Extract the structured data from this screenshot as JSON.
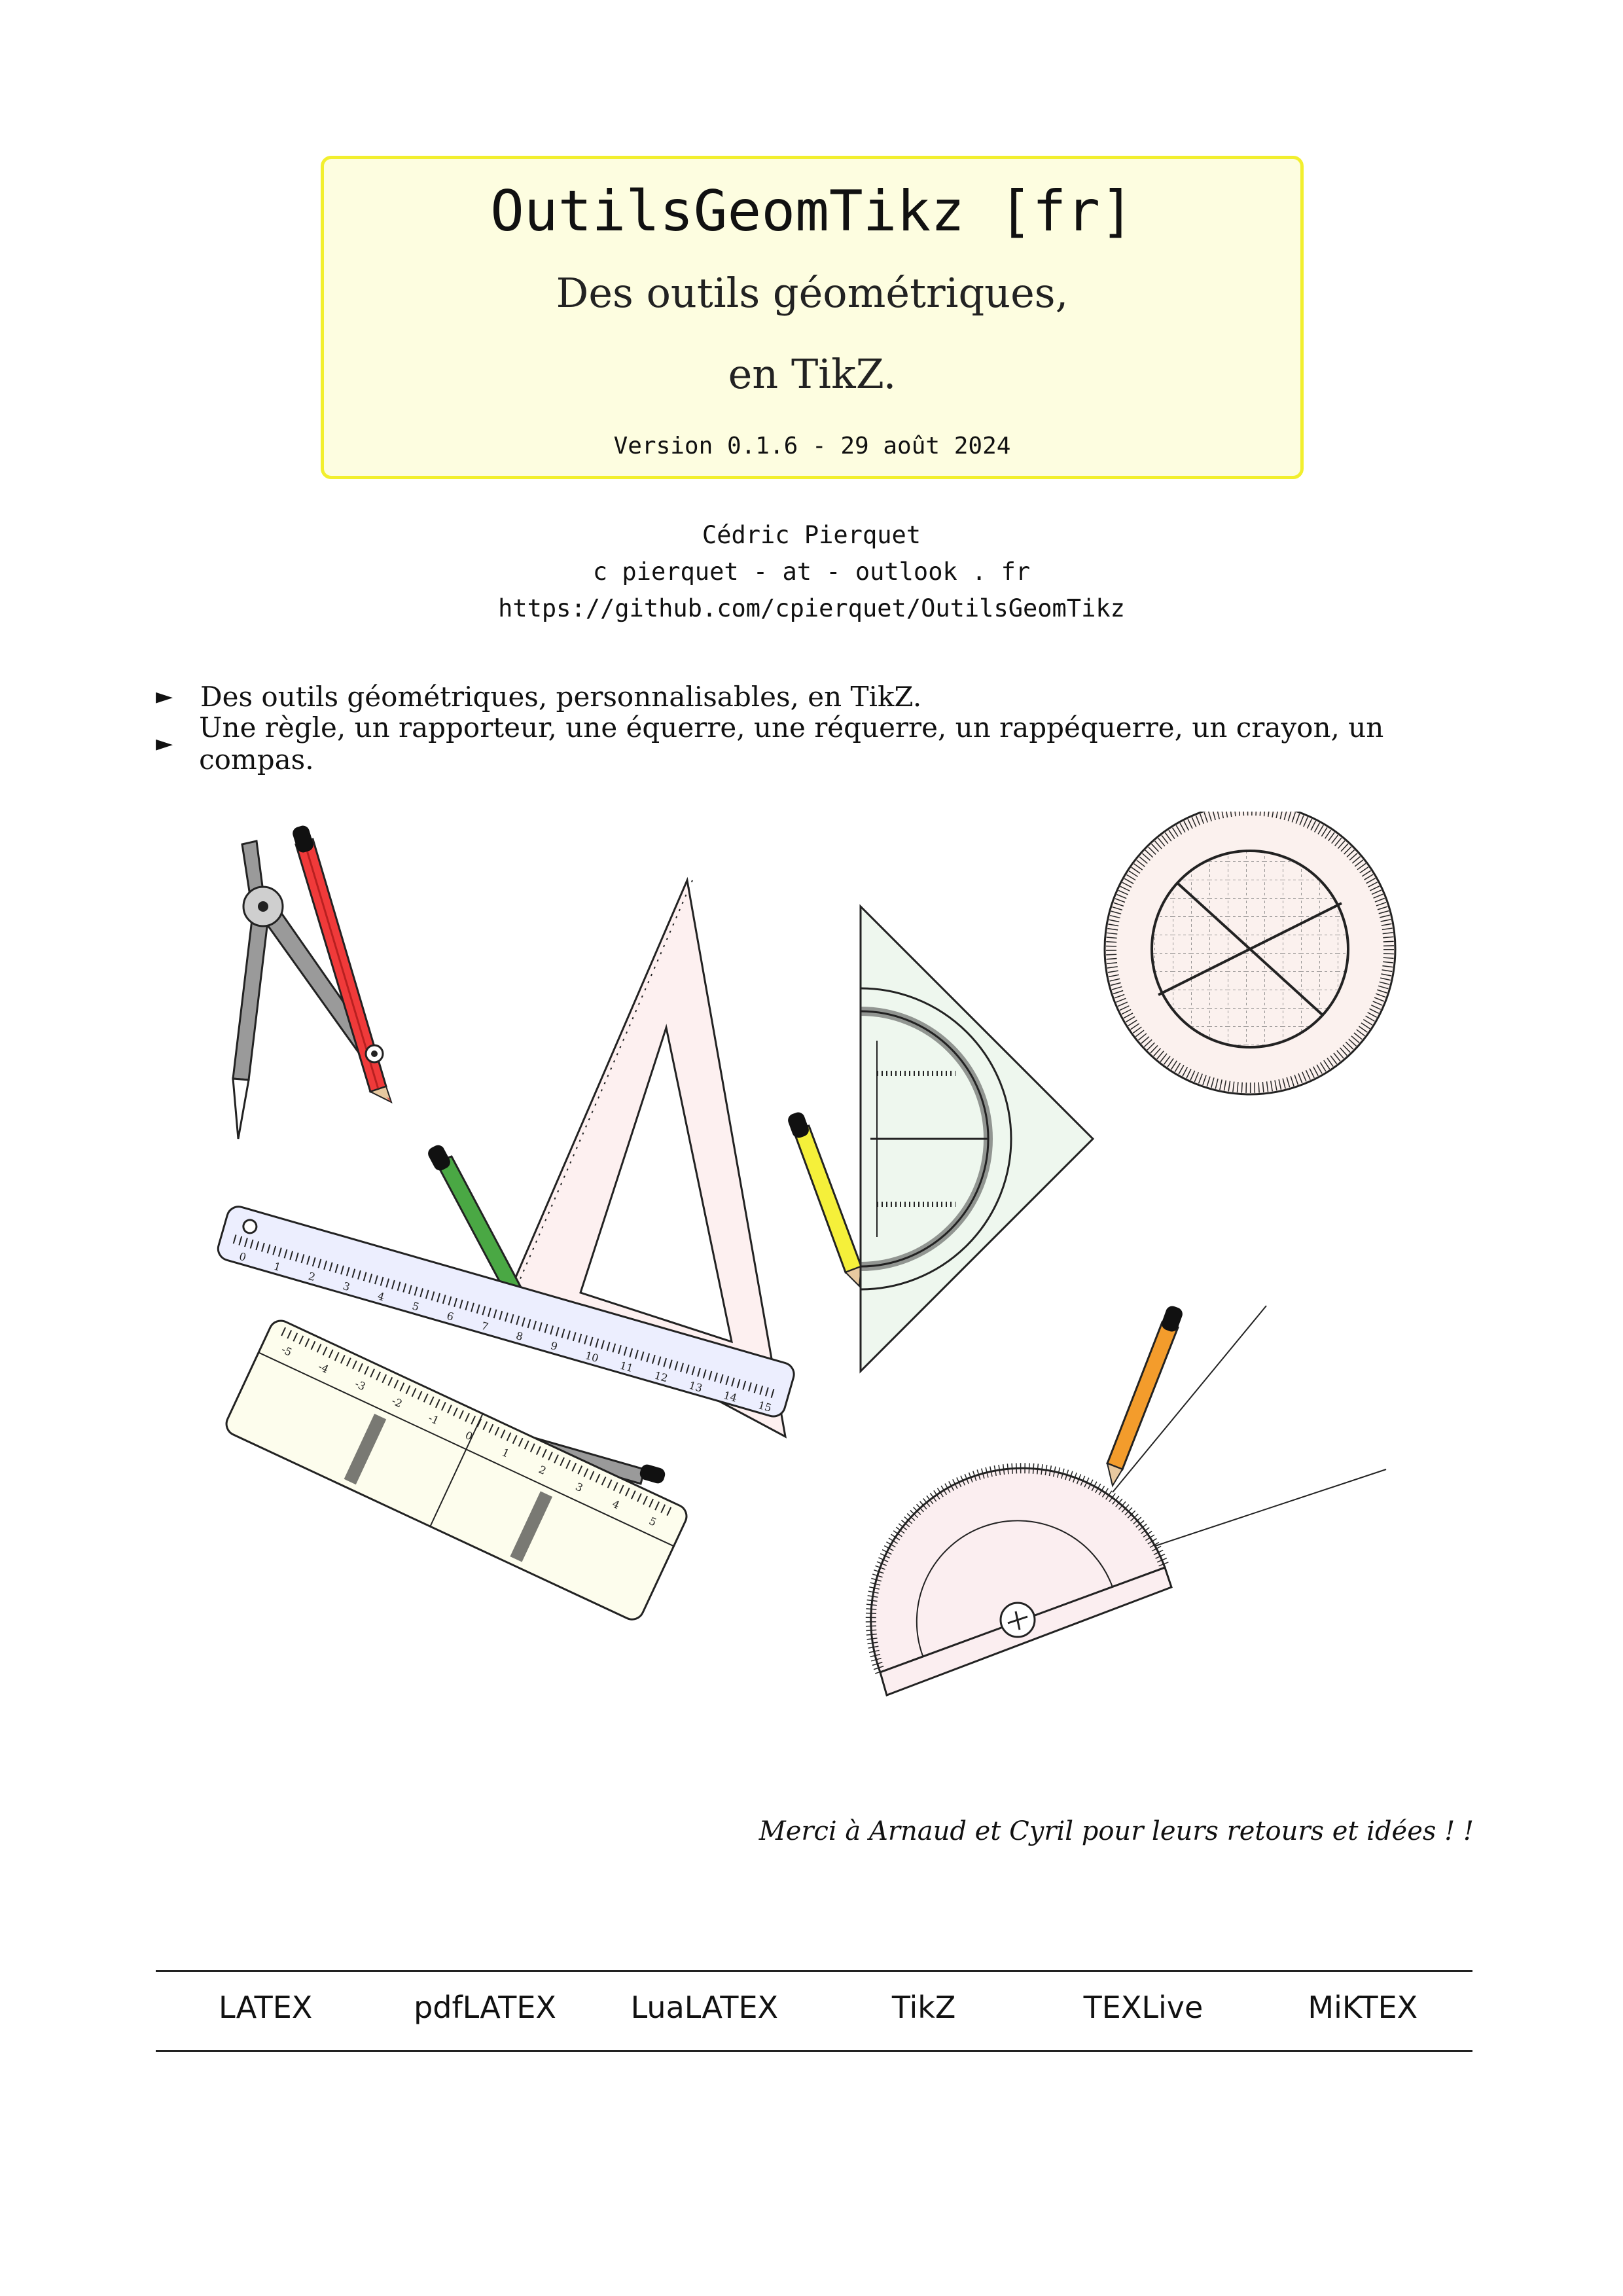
{
  "title": "OutilsGeomTikz [fr]",
  "subtitle_line1": "Des outils géométriques,",
  "subtitle_line2": "en TikZ.",
  "version": "Version 0.1.6 - 29 août 2024",
  "author": {
    "name": "Cédric Pierquet",
    "email": "c pierquet - at - outlook . fr",
    "url": "https://github.com/cpierquet/OutilsGeomTikz"
  },
  "bullets": [
    {
      "marker": "►",
      "text": "Des outils géométriques, personnalisables, en TikZ."
    },
    {
      "marker": "►",
      "text": "Une règle, un rapporteur, une équerre, une réquerre, un rappéquerre, un crayon, un compas."
    }
  ],
  "thanks": "Merci à Arnaud et Cyril pour leurs retours et idées ! !",
  "footer": [
    "LATEX",
    "pdfLATEX",
    "LuaLATEX",
    "TikZ",
    "TEXLive",
    "MiKTEX"
  ],
  "colors": {
    "title_bg": "#fdfde0",
    "title_border": "#f2ef2e",
    "pencil_red": "#f03a3a",
    "pencil_green": "#4aa844",
    "pencil_yellow": "#f5f03a",
    "pencil_gray": "#9a9a9a",
    "pencil_orange": "#f39c2c",
    "ruler_blue": "#eceefe",
    "triangle_pink": "#fdf0f0",
    "setsquare_green": "#eef7ee",
    "protractor_pink": "#fbeef0",
    "reqrule_yellow": "#fdfded"
  },
  "ruler_labels": [
    "0",
    "1",
    "2",
    "3",
    "4",
    "5",
    "6",
    "7",
    "8",
    "9",
    "10",
    "11",
    "12",
    "13",
    "14",
    "15"
  ],
  "reqrule_labels": [
    "-5",
    "-4",
    "-3",
    "-2",
    "-1",
    "0",
    "1",
    "2",
    "3",
    "4",
    "5"
  ]
}
